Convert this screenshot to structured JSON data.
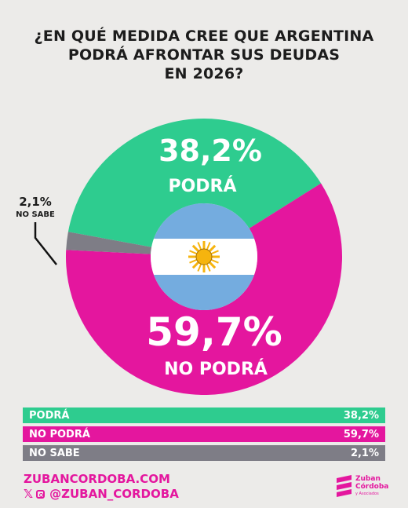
{
  "title_lines": [
    "¿EN QUÉ MEDIDA CREE QUE ARGENTINA",
    "PODRÁ AFRONTAR SUS DEUDAS",
    "EN 2026?"
  ],
  "colors": {
    "podra": "#2ecc8f",
    "no_podra": "#e4169e",
    "no_sabe": "#7e7d86",
    "flag_blue": "#74acdf",
    "sun": "#f6b40e"
  },
  "chart_data": {
    "type": "pie",
    "style": "donut",
    "title": "¿EN QUÉ MEDIDA CREE QUE ARGENTINA PODRÁ AFRONTAR SUS DEUDAS EN 2026?",
    "slices": [
      {
        "name": "PODRÁ",
        "value": 38.2,
        "label": "38,2%"
      },
      {
        "name": "NO PODRÁ",
        "value": 59.7,
        "label": "59,7%"
      },
      {
        "name": "NO SABE",
        "value": 2.1,
        "label": "2,1%"
      }
    ],
    "center_image": "argentina-flag"
  },
  "table": [
    {
      "name": "PODRÁ",
      "value": "38,2%"
    },
    {
      "name": "NO PODRÁ",
      "value": "59,7%"
    },
    {
      "name": "NO SABE",
      "value": "2,1%"
    }
  ],
  "footer": {
    "website": "ZUBANCORDOBA.COM",
    "social_handle": "@ZUBAN_CORDOBA",
    "social_icons": [
      "x-icon",
      "instagram-icon"
    ]
  },
  "logo": {
    "line1": "Zuban",
    "line2": "Córdoba",
    "line3": "y Asociados"
  }
}
